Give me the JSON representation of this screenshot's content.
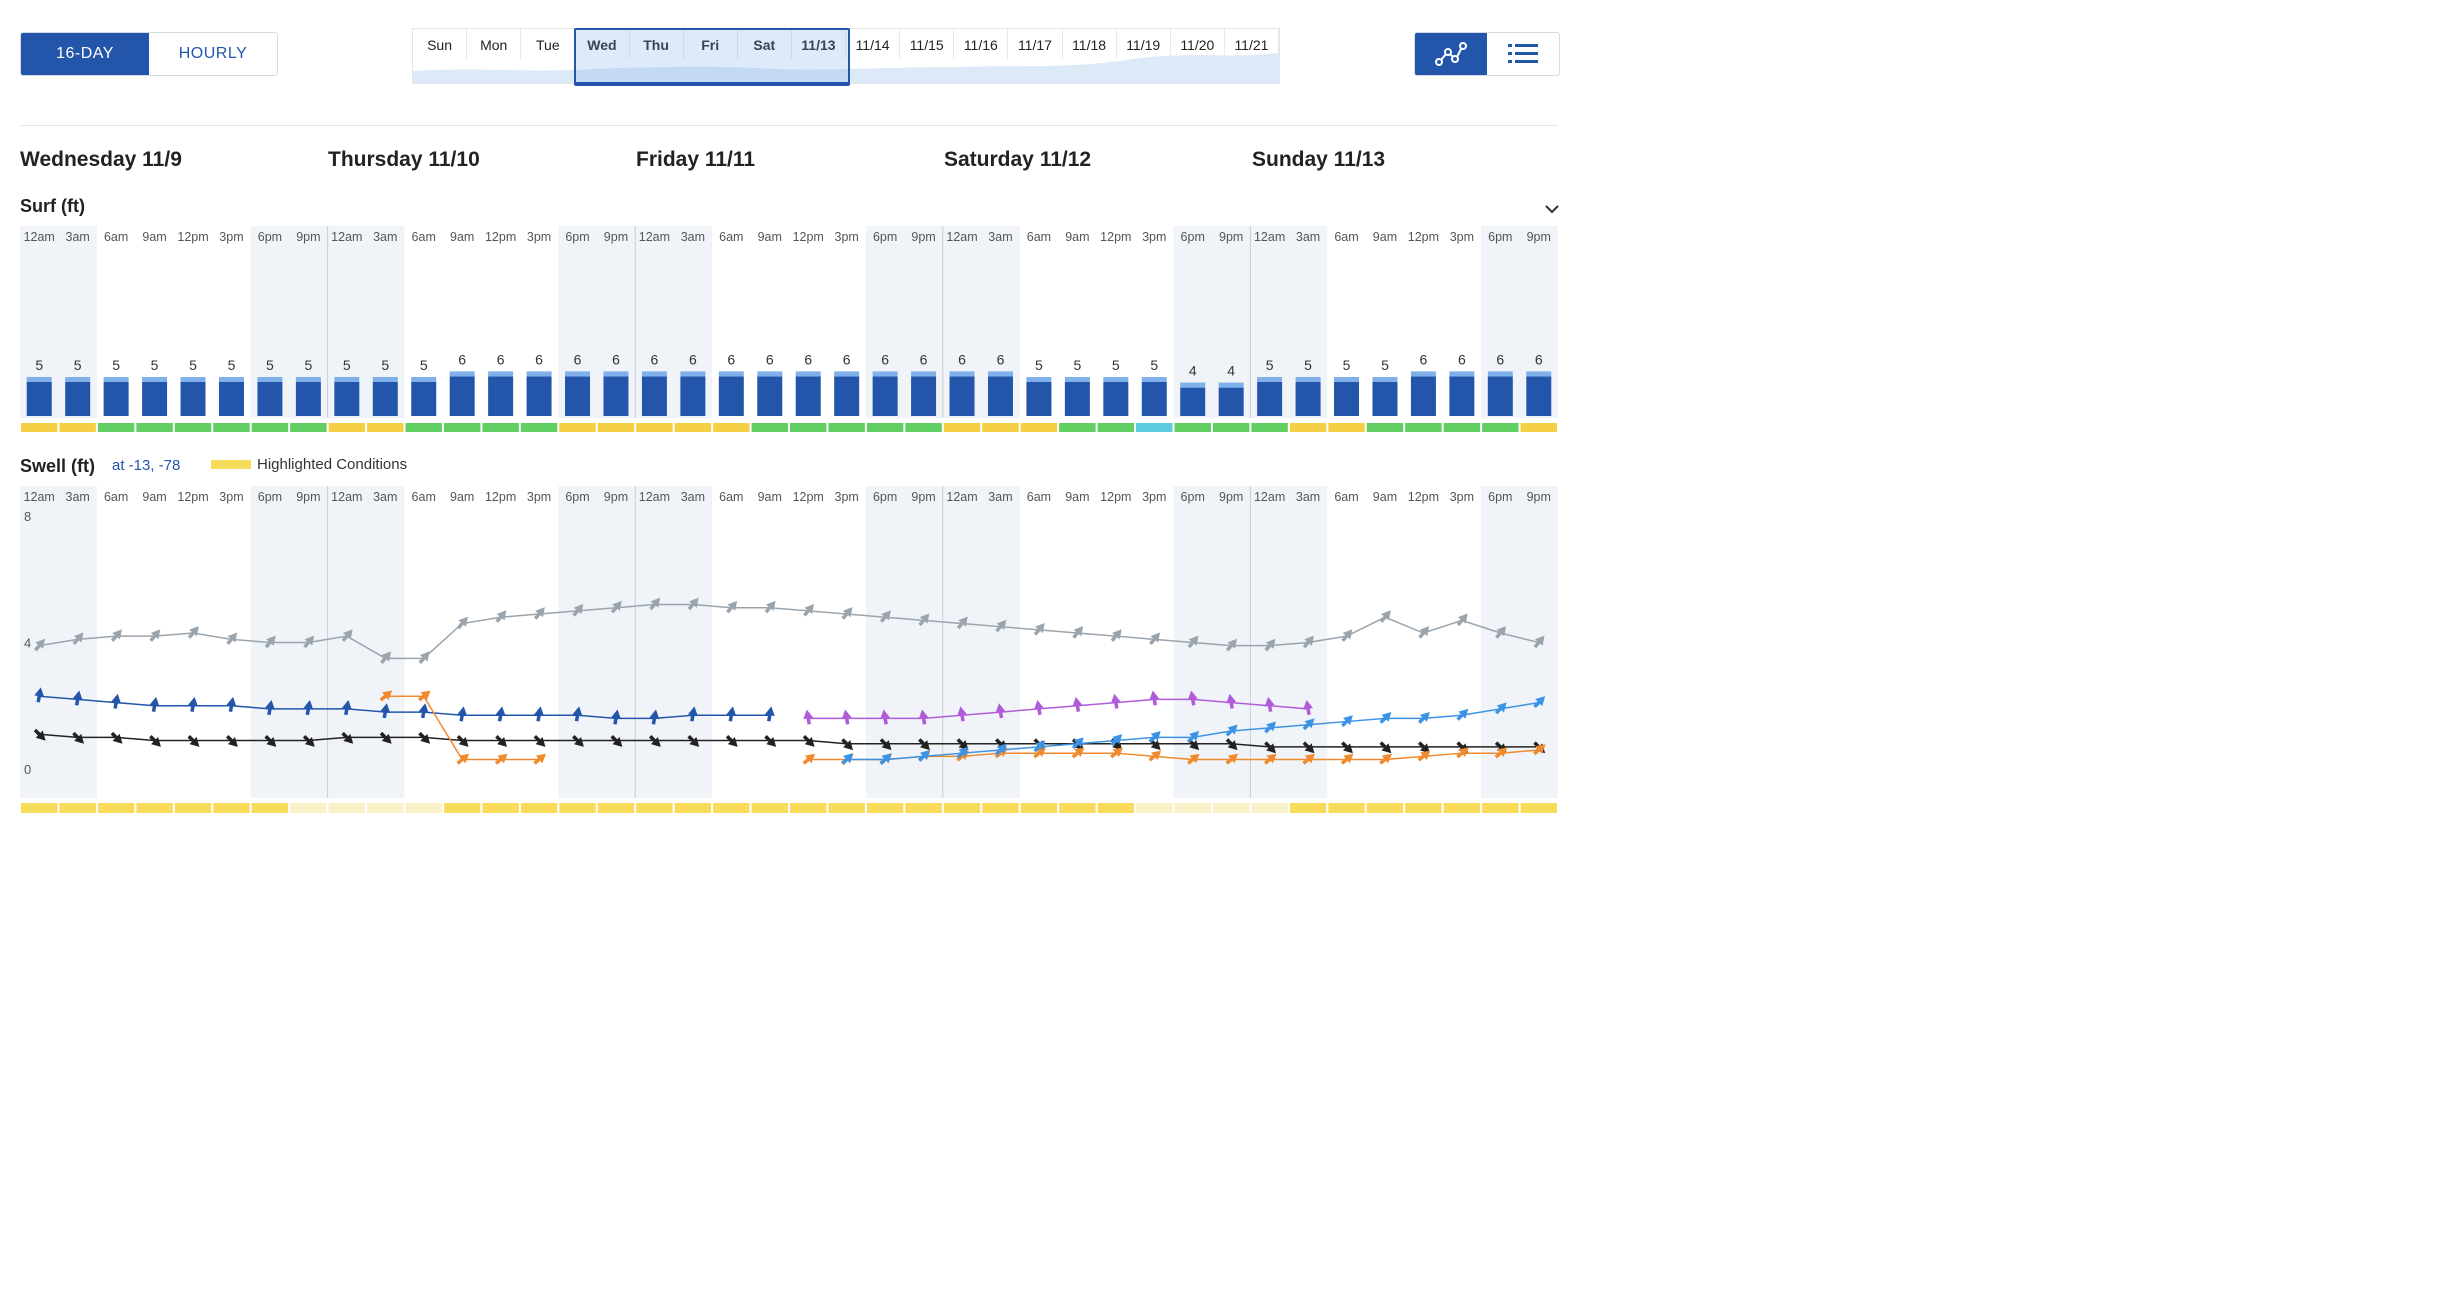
{
  "mode_toggle": {
    "left": "16-DAY",
    "right": "HOURLY",
    "selected": "16-DAY"
  },
  "timeline": {
    "days": [
      "Sun",
      "Mon",
      "Tue",
      "Wed",
      "Thu",
      "Fri",
      "Sat",
      "11/13",
      "11/14",
      "11/15",
      "11/16",
      "11/17",
      "11/18",
      "11/19",
      "11/20",
      "11/21"
    ],
    "selected_range": [
      "Wed",
      "11/13"
    ]
  },
  "view_buttons": {
    "chart_icon": "chart-view-icon",
    "list_icon": "list-view-icon",
    "selected": "chart"
  },
  "days": [
    "Wednesday 11/9",
    "Thursday 11/10",
    "Friday 11/11",
    "Saturday 11/12",
    "Sunday 11/13"
  ],
  "hours": [
    "12am",
    "3am",
    "6am",
    "9am",
    "12pm",
    "3pm",
    "6pm",
    "9pm"
  ],
  "surf": {
    "title": "Surf (ft)",
    "values": [
      5,
      5,
      5,
      5,
      5,
      5,
      5,
      5,
      5,
      5,
      5,
      6,
      6,
      6,
      6,
      6,
      6,
      6,
      6,
      6,
      6,
      6,
      6,
      6,
      6,
      6,
      5,
      5,
      5,
      5,
      4,
      4,
      5,
      5,
      5,
      5,
      6,
      6,
      6,
      6
    ],
    "conditions": [
      "fair",
      "fair",
      "good",
      "good",
      "good",
      "good",
      "good",
      "good",
      "fair",
      "fair",
      "good",
      "good",
      "good",
      "good",
      "fair",
      "fair",
      "fair",
      "fair",
      "fair",
      "good",
      "good",
      "good",
      "good",
      "good",
      "fair",
      "fair",
      "fair",
      "good",
      "good",
      "epic",
      "good",
      "good",
      "good",
      "fair",
      "fair",
      "good",
      "good",
      "good",
      "good",
      "fair"
    ],
    "colors": {
      "bar": "#2356aa",
      "bar_top": "#7fb0ea",
      "fair": "#f5cf45",
      "good": "#62cf63",
      "epic": "#5bcbe0"
    }
  },
  "swell": {
    "title": "Swell (ft)",
    "location": "at -13, -78",
    "legend": "Highlighted Conditions",
    "y_ticks": [
      "8",
      "4",
      "0"
    ],
    "highlight_strip": [
      "on",
      "on",
      "on",
      "on",
      "on",
      "on",
      "on",
      "off",
      "off",
      "off",
      "off",
      "on",
      "on",
      "on",
      "on",
      "on",
      "on",
      "on",
      "on",
      "on",
      "on",
      "on",
      "on",
      "on",
      "on",
      "on",
      "on",
      "on",
      "on",
      "off",
      "off",
      "off",
      "off",
      "on",
      "on",
      "on",
      "on",
      "on",
      "on",
      "on"
    ],
    "colors": {
      "highlight": "#f7dc5c",
      "highlight_off": "#fbf1c6"
    }
  },
  "chart_data": {
    "type": "line",
    "title": "Swell (ft)",
    "ylim": [
      0,
      8
    ],
    "x_step_hours": 3,
    "series": [
      {
        "color": "#9aa4ad",
        "values": [
          3.9,
          4.1,
          4.2,
          4.2,
          4.3,
          4.1,
          4.0,
          4.0,
          4.2,
          3.5,
          3.5,
          4.6,
          4.8,
          4.9,
          5.0,
          5.1,
          5.2,
          5.2,
          5.1,
          5.1,
          5.0,
          4.9,
          4.8,
          4.7,
          4.6,
          4.5,
          4.4,
          4.3,
          4.2,
          4.1,
          4.0,
          3.9,
          3.9,
          4.0,
          4.2,
          4.8,
          4.3,
          4.7,
          4.3,
          4.0
        ]
      },
      {
        "color": "#2356aa",
        "values": [
          2.3,
          2.2,
          2.1,
          2.0,
          2.0,
          2.0,
          1.9,
          1.9,
          1.9,
          1.8,
          1.8,
          1.7,
          1.7,
          1.7,
          1.7,
          1.6,
          1.6,
          1.7,
          1.7,
          1.7,
          null,
          null,
          null,
          null,
          null,
          null,
          null,
          null,
          null,
          null,
          null,
          null,
          null,
          null,
          null,
          null,
          null,
          null,
          null,
          null
        ]
      },
      {
        "color": "#222222",
        "values": [
          1.1,
          1.0,
          1.0,
          0.9,
          0.9,
          0.9,
          0.9,
          0.9,
          1.0,
          1.0,
          1.0,
          0.9,
          0.9,
          0.9,
          0.9,
          0.9,
          0.9,
          0.9,
          0.9,
          0.9,
          0.9,
          0.8,
          0.8,
          0.8,
          0.8,
          0.8,
          0.8,
          0.8,
          0.8,
          0.8,
          0.8,
          0.8,
          0.7,
          0.7,
          0.7,
          0.7,
          0.7,
          0.7,
          0.7,
          0.7
        ]
      },
      {
        "color": "#b05cd8",
        "values": [
          null,
          null,
          null,
          null,
          null,
          null,
          null,
          null,
          null,
          null,
          null,
          null,
          null,
          null,
          null,
          null,
          null,
          null,
          null,
          null,
          1.6,
          1.6,
          1.6,
          1.6,
          1.7,
          1.8,
          1.9,
          2.0,
          2.1,
          2.2,
          2.2,
          2.1,
          2.0,
          1.9,
          null,
          null,
          null,
          null,
          null,
          null
        ]
      },
      {
        "color": "#f08a2c",
        "values": [
          null,
          null,
          null,
          null,
          null,
          null,
          null,
          null,
          null,
          2.3,
          2.3,
          0.3,
          0.3,
          0.3,
          null,
          null,
          null,
          null,
          null,
          null,
          0.3,
          0.3,
          0.3,
          0.4,
          0.4,
          0.5,
          0.5,
          0.5,
          0.5,
          0.4,
          0.3,
          0.3,
          0.3,
          0.3,
          0.3,
          0.3,
          0.4,
          0.5,
          0.5,
          0.6
        ]
      },
      {
        "color": "#3c93e6",
        "values": [
          null,
          null,
          null,
          null,
          null,
          null,
          null,
          null,
          null,
          null,
          null,
          null,
          null,
          null,
          null,
          null,
          null,
          null,
          null,
          null,
          null,
          0.3,
          0.3,
          0.4,
          0.5,
          0.6,
          0.7,
          0.8,
          0.9,
          1.0,
          1.0,
          1.2,
          1.3,
          1.4,
          1.5,
          1.6,
          1.6,
          1.7,
          1.9,
          2.1
        ]
      }
    ]
  }
}
